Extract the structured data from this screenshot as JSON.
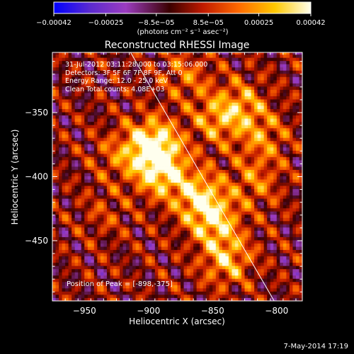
{
  "chart_data": {
    "type": "heatmap",
    "title": "Reconstructed RHESSI Image",
    "xlabel": "Heliocentric X (arcsec)",
    "ylabel": "Heliocentric Y (arcsec)",
    "xlim": [
      -975,
      -780
    ],
    "ylim": [
      -497,
      -303
    ],
    "x_ticks": [
      -950,
      -900,
      -850,
      -800
    ],
    "x_tick_labels": [
      "−950",
      "−900",
      "−850",
      "−800"
    ],
    "y_ticks": [
      -350,
      -400,
      -450
    ],
    "y_tick_labels": [
      "−350",
      "−400",
      "−450"
    ],
    "colorbar": {
      "range": [
        -0.00042,
        0.00042
      ],
      "tick_values": [
        -0.00042,
        -0.00025,
        -8.5e-05,
        8.5e-05,
        0.00025,
        0.00042
      ],
      "tick_labels": [
        "−0.00042",
        "−0.00025",
        "−8.5e−05",
        "8.5e−05",
        "0.00025",
        "0.00042"
      ],
      "unit_label": "(photons cm⁻² s⁻¹ asec⁻²)"
    },
    "peak": {
      "x": -898,
      "y": -375
    },
    "limb_line": [
      [
        -914,
        -303
      ],
      [
        -802,
        -497
      ]
    ],
    "bright_sources": [
      {
        "x": -898,
        "y": -376,
        "intensity": 0.00042
      },
      {
        "x": -891,
        "y": -397,
        "intensity": 0.00034
      },
      {
        "x": -862,
        "y": -416,
        "intensity": 0.0003
      },
      {
        "x": -850,
        "y": -436,
        "intensity": 0.00029
      },
      {
        "x": -840,
        "y": -466,
        "intensity": 0.00027
      },
      {
        "x": -848,
        "y": -356,
        "intensity": 0.00022
      },
      {
        "x": -828,
        "y": -345,
        "intensity": 0.0002
      },
      {
        "x": -812,
        "y": -370,
        "intensity": 0.00018
      },
      {
        "x": -818,
        "y": -405,
        "intensity": 0.00017
      },
      {
        "x": -872,
        "y": -322,
        "intensity": 0.00016
      },
      {
        "x": -925,
        "y": -385,
        "intensity": 0.00014
      },
      {
        "x": -935,
        "y": -430,
        "intensity": 9e-05
      }
    ],
    "colors": {
      "background": "#000000",
      "limb_line": "#ffffff",
      "colormap": [
        "#0000ff",
        "#5a2ad0",
        "#9b3cc0",
        "#6a0000",
        "#d21e00",
        "#ff7a00",
        "#ffd000",
        "#ffffe6"
      ]
    }
  },
  "annotations": {
    "time_range": "31-Jul-2012 03:11:28.000 to 03:15:06.000",
    "detectors": "Detectors: 3F 5F 6F 7F 8F 9F, Att 0",
    "energy_range": "Energy Range: 12.0 - 25.0 keV",
    "clean": "Clean     Total counts: 4.08E+03",
    "peak_position": "Position of Peak = [-898,-375]"
  },
  "footer": {
    "date": "7-May-2014 17:19"
  }
}
